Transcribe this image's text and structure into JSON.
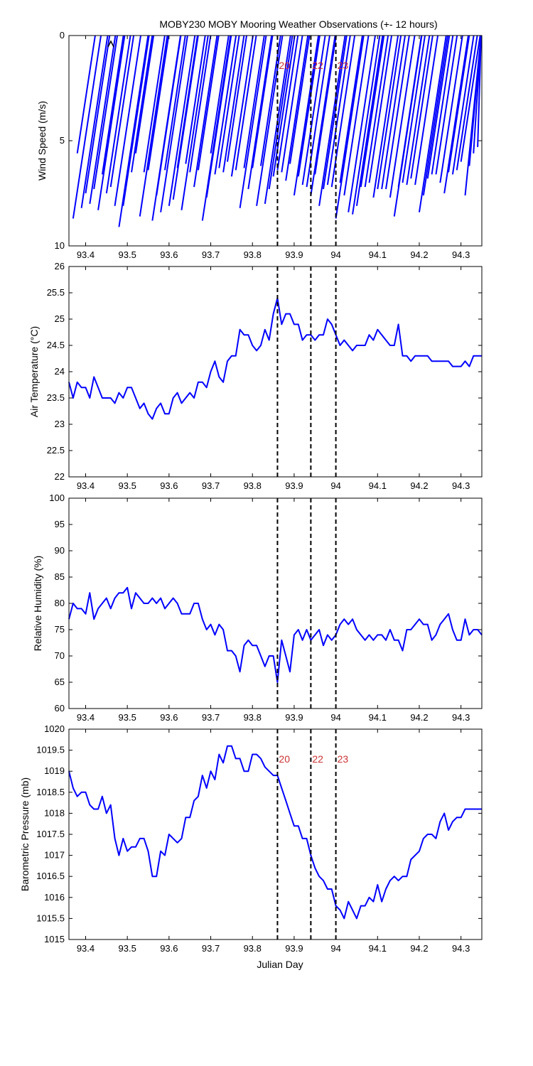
{
  "chart_data": [
    {
      "type": "quiver",
      "title": "MOBY230 MOBY Mooring Weather Observations (+- 12 hours)",
      "ylabel": "Wind Speed (m/s)",
      "xlabel": "",
      "xlim": [
        93.36,
        94.35
      ],
      "ylim": [
        10,
        0
      ],
      "y_reversed": true,
      "yticks": [
        0,
        5,
        10
      ],
      "xticks": [
        "93.4",
        "93.5",
        "93.6",
        "93.7",
        "93.8",
        "93.9",
        "94",
        "94.1",
        "94.2",
        "94.3"
      ],
      "series": [
        {
          "color": "#0000ff",
          "x": [
            93.37,
            93.38,
            93.39,
            93.4,
            93.41,
            93.42,
            93.43,
            93.44,
            93.45,
            93.46,
            93.47,
            93.48,
            93.49,
            93.5,
            93.51,
            93.52,
            93.53,
            93.54,
            93.55,
            93.56,
            93.57,
            93.58,
            93.59,
            93.6,
            93.61,
            93.62,
            93.63,
            93.64,
            93.65,
            93.66,
            93.67,
            93.68,
            93.69,
            93.7,
            93.71,
            93.72,
            93.73,
            93.74,
            93.75,
            93.76,
            93.77,
            93.78,
            93.79,
            93.8,
            93.81,
            93.82,
            93.83,
            93.84,
            93.85,
            93.86,
            93.87,
            93.88,
            93.89,
            93.9,
            93.91,
            93.92,
            93.93,
            93.94,
            93.95,
            93.96,
            93.97,
            93.98,
            93.99,
            94.0,
            94.01,
            94.02,
            94.03,
            94.04,
            94.05,
            94.06,
            94.07,
            94.08,
            94.09,
            94.1,
            94.11,
            94.12,
            94.13,
            94.14,
            94.15,
            94.16,
            94.17,
            94.18,
            94.19,
            94.2,
            94.21,
            94.22,
            94.23,
            94.24,
            94.25,
            94.26,
            94.27,
            94.28,
            94.29,
            94.3,
            94.31,
            94.32,
            94.33,
            94.34
          ],
          "speed": [
            8.7,
            5.6,
            8.2,
            7.5,
            8.0,
            7.3,
            8.3,
            6.6,
            7.5,
            7.2,
            8.1,
            9.1,
            8.1,
            6.7,
            6.5,
            5.6,
            8.6,
            6.5,
            6.4,
            8.8,
            7.6,
            8.4,
            6.4,
            8.1,
            7.8,
            6.3,
            8.3,
            6.1,
            6.5,
            7.2,
            6.4,
            8.8,
            7.7,
            5.6,
            6.6,
            6.3,
            6.5,
            6.0,
            6.7,
            6.4,
            8.2,
            6.3,
            7.3,
            6.3,
            8.1,
            6.2,
            8.0,
            7.3,
            6.7,
            6.4,
            6.5,
            6.9,
            6.1,
            7.6,
            6.7,
            7.1,
            7.2,
            7.6,
            6.6,
            8.1,
            7.3,
            7.1,
            7.2,
            8.7,
            7.0,
            7.6,
            8.4,
            8.5,
            8.1,
            7.2,
            7.2,
            7.0,
            7.7,
            7.3,
            7.3,
            7.3,
            7.7,
            8.6,
            7.2,
            7.0,
            7.1,
            6.8,
            7.1,
            8.4,
            7.6,
            6.8,
            6.6,
            6.6,
            7.0,
            7.5,
            6.5,
            6.6,
            6.4,
            6.0,
            7.6,
            6.2,
            5.6,
            5.3
          ]
        }
      ]
    },
    {
      "type": "line",
      "title": "",
      "xlabel": "",
      "ylabel": "Air Temperature (°C)",
      "xlim": [
        93.36,
        94.35
      ],
      "ylim": [
        22,
        26
      ],
      "yticks": [
        "22",
        "22.5",
        "23",
        "23.5",
        "24",
        "24.5",
        "25",
        "25.5",
        "26"
      ],
      "xticks": [
        "93.4",
        "93.5",
        "93.6",
        "93.7",
        "93.8",
        "93.9",
        "94",
        "94.1",
        "94.2",
        "94.3"
      ],
      "series": [
        {
          "color": "#0000ff",
          "x": [
            93.36,
            93.37,
            93.38,
            93.39,
            93.4,
            93.41,
            93.42,
            93.43,
            93.44,
            93.45,
            93.46,
            93.47,
            93.48,
            93.49,
            93.5,
            93.51,
            93.52,
            93.53,
            93.54,
            93.55,
            93.56,
            93.57,
            93.58,
            93.59,
            93.6,
            93.61,
            93.62,
            93.63,
            93.64,
            93.65,
            93.66,
            93.67,
            93.68,
            93.69,
            93.7,
            93.71,
            93.72,
            93.73,
            93.74,
            93.75,
            93.76,
            93.77,
            93.78,
            93.79,
            93.8,
            93.81,
            93.82,
            93.83,
            93.84,
            93.85,
            93.86,
            93.87,
            93.88,
            93.89,
            93.9,
            93.91,
            93.92,
            93.93,
            93.94,
            93.95,
            93.96,
            93.97,
            93.98,
            93.99,
            94.0,
            94.01,
            94.02,
            94.03,
            94.04,
            94.05,
            94.06,
            94.07,
            94.08,
            94.09,
            94.1,
            94.11,
            94.12,
            94.13,
            94.14,
            94.15,
            94.16,
            94.17,
            94.18,
            94.19,
            94.2,
            94.21,
            94.22,
            94.23,
            94.24,
            94.25,
            94.26,
            94.27,
            94.28,
            94.29,
            94.3,
            94.31,
            94.32,
            94.33,
            94.34,
            94.35
          ],
          "values": [
            23.8,
            23.5,
            23.8,
            23.7,
            23.7,
            23.5,
            23.9,
            23.7,
            23.5,
            23.5,
            23.5,
            23.4,
            23.6,
            23.5,
            23.7,
            23.7,
            23.5,
            23.3,
            23.4,
            23.2,
            23.1,
            23.3,
            23.4,
            23.2,
            23.2,
            23.5,
            23.6,
            23.4,
            23.5,
            23.6,
            23.5,
            23.8,
            23.8,
            23.7,
            24.0,
            24.2,
            23.9,
            23.8,
            24.2,
            24.3,
            24.3,
            24.8,
            24.7,
            24.7,
            24.5,
            24.4,
            24.5,
            24.8,
            24.6,
            25.1,
            25.4,
            24.9,
            25.1,
            25.1,
            24.9,
            24.9,
            24.6,
            24.7,
            24.7,
            24.6,
            24.7,
            24.7,
            25.0,
            24.9,
            24.7,
            24.5,
            24.6,
            24.5,
            24.4,
            24.5,
            24.5,
            24.5,
            24.7,
            24.6,
            24.8,
            24.7,
            24.6,
            24.5,
            24.5,
            24.9,
            24.3,
            24.3,
            24.2,
            24.3,
            24.3,
            24.3,
            24.3,
            24.2,
            24.2,
            24.2,
            24.2,
            24.2,
            24.1,
            24.1,
            24.1,
            24.2,
            24.1,
            24.3,
            24.3,
            24.3
          ]
        }
      ]
    },
    {
      "type": "line",
      "title": "",
      "xlabel": "",
      "ylabel": "Relative Humidity (%)",
      "xlim": [
        93.36,
        94.35
      ],
      "ylim": [
        60,
        100
      ],
      "yticks": [
        "60",
        "65",
        "70",
        "75",
        "80",
        "85",
        "90",
        "95",
        "100"
      ],
      "xticks": [
        "93.4",
        "93.5",
        "93.6",
        "93.7",
        "93.8",
        "93.9",
        "94",
        "94.1",
        "94.2",
        "94.3"
      ],
      "series": [
        {
          "color": "#0000ff",
          "x": [
            93.36,
            93.37,
            93.38,
            93.39,
            93.4,
            93.41,
            93.42,
            93.43,
            93.44,
            93.45,
            93.46,
            93.47,
            93.48,
            93.49,
            93.5,
            93.51,
            93.52,
            93.53,
            93.54,
            93.55,
            93.56,
            93.57,
            93.58,
            93.59,
            93.6,
            93.61,
            93.62,
            93.63,
            93.64,
            93.65,
            93.66,
            93.67,
            93.68,
            93.69,
            93.7,
            93.71,
            93.72,
            93.73,
            93.74,
            93.75,
            93.76,
            93.77,
            93.78,
            93.79,
            93.8,
            93.81,
            93.82,
            93.83,
            93.84,
            93.85,
            93.86,
            93.87,
            93.88,
            93.89,
            93.9,
            93.91,
            93.92,
            93.93,
            93.94,
            93.95,
            93.96,
            93.97,
            93.98,
            93.99,
            94.0,
            94.01,
            94.02,
            94.03,
            94.04,
            94.05,
            94.06,
            94.07,
            94.08,
            94.09,
            94.1,
            94.11,
            94.12,
            94.13,
            94.14,
            94.15,
            94.16,
            94.17,
            94.18,
            94.19,
            94.2,
            94.21,
            94.22,
            94.23,
            94.24,
            94.25,
            94.26,
            94.27,
            94.28,
            94.29,
            94.3,
            94.31,
            94.32,
            94.33,
            94.34,
            94.35
          ],
          "values": [
            77,
            80,
            79,
            79,
            78,
            82,
            77,
            79,
            80,
            81,
            79,
            81,
            82,
            82,
            83,
            79,
            82,
            81,
            80,
            80,
            81,
            80,
            81,
            79,
            80,
            81,
            80,
            78,
            78,
            78,
            80,
            80,
            77,
            75,
            76,
            74,
            76,
            75,
            71,
            71,
            70,
            67,
            72,
            73,
            72,
            72,
            70,
            68,
            70,
            70,
            65,
            73,
            70,
            67,
            74,
            75,
            73,
            75,
            73,
            74,
            75,
            72,
            74,
            73,
            74,
            76,
            77,
            76,
            77,
            75,
            74,
            73,
            74,
            73,
            74,
            74,
            73,
            75,
            73,
            73,
            71,
            75,
            75,
            76,
            77,
            76,
            76,
            73,
            74,
            76,
            77,
            78,
            75,
            73,
            73,
            77,
            74,
            75,
            75,
            74
          ]
        }
      ]
    },
    {
      "type": "line",
      "title": "",
      "xlabel": "Julian Day",
      "ylabel": "Barometric Pressure (mb)",
      "xlim": [
        93.36,
        94.35
      ],
      "ylim": [
        1015,
        1020
      ],
      "yticks": [
        "1015",
        "1015.5",
        "1016",
        "1016.5",
        "1017",
        "1017.5",
        "1018",
        "1018.5",
        "1019",
        "1019.5",
        "1020"
      ],
      "xticks": [
        "93.4",
        "93.5",
        "93.6",
        "93.7",
        "93.8",
        "93.9",
        "94",
        "94.1",
        "94.2",
        "94.3"
      ],
      "series": [
        {
          "color": "#0000ff",
          "x": [
            93.36,
            93.37,
            93.38,
            93.39,
            93.4,
            93.41,
            93.42,
            93.43,
            93.44,
            93.45,
            93.46,
            93.47,
            93.48,
            93.49,
            93.5,
            93.51,
            93.52,
            93.53,
            93.54,
            93.55,
            93.56,
            93.57,
            93.58,
            93.59,
            93.6,
            93.61,
            93.62,
            93.63,
            93.64,
            93.65,
            93.66,
            93.67,
            93.68,
            93.69,
            93.7,
            93.71,
            93.72,
            93.73,
            93.74,
            93.75,
            93.76,
            93.77,
            93.78,
            93.79,
            93.8,
            93.81,
            93.82,
            93.83,
            93.84,
            93.85,
            93.86,
            93.87,
            93.88,
            93.89,
            93.9,
            93.91,
            93.92,
            93.93,
            93.94,
            93.95,
            93.96,
            93.97,
            93.98,
            93.99,
            94.0,
            94.01,
            94.02,
            94.03,
            94.04,
            94.05,
            94.06,
            94.07,
            94.08,
            94.09,
            94.1,
            94.11,
            94.12,
            94.13,
            94.14,
            94.15,
            94.16,
            94.17,
            94.18,
            94.19,
            94.2,
            94.21,
            94.22,
            94.23,
            94.24,
            94.25,
            94.26,
            94.27,
            94.28,
            94.29,
            94.3,
            94.31,
            94.32,
            94.33,
            94.34,
            94.35
          ],
          "values": [
            1019.0,
            1018.6,
            1018.4,
            1018.5,
            1018.5,
            1018.2,
            1018.1,
            1018.1,
            1018.4,
            1018.0,
            1018.2,
            1017.4,
            1017.0,
            1017.4,
            1017.1,
            1017.2,
            1017.2,
            1017.4,
            1017.4,
            1017.1,
            1016.5,
            1016.5,
            1017.1,
            1017.0,
            1017.5,
            1017.4,
            1017.3,
            1017.4,
            1017.9,
            1017.9,
            1018.3,
            1018.4,
            1018.9,
            1018.6,
            1019.0,
            1018.8,
            1019.4,
            1019.2,
            1019.6,
            1019.6,
            1019.3,
            1019.3,
            1019.0,
            1019.0,
            1019.4,
            1019.4,
            1019.3,
            1019.1,
            1019.0,
            1018.9,
            1018.9,
            1018.6,
            1018.3,
            1018.0,
            1017.7,
            1017.7,
            1017.4,
            1017.4,
            1017.0,
            1016.7,
            1016.5,
            1016.4,
            1016.2,
            1016.2,
            1015.8,
            1015.7,
            1015.5,
            1015.9,
            1015.7,
            1015.5,
            1015.8,
            1015.8,
            1016.0,
            1015.9,
            1016.3,
            1015.9,
            1016.2,
            1016.4,
            1016.5,
            1016.4,
            1016.5,
            1016.5,
            1016.9,
            1017.0,
            1017.1,
            1017.4,
            1017.5,
            1017.5,
            1017.4,
            1017.8,
            1018.0,
            1017.6,
            1017.8,
            1017.9,
            1017.9,
            1018.1,
            1018.1,
            1018.1,
            1018.1,
            1018.1
          ]
        }
      ]
    }
  ],
  "markers": {
    "x": [
      93.86,
      93.94,
      94.0
    ],
    "labels": [
      "20",
      "22",
      "23"
    ],
    "label_color": "#cc3333",
    "line_color": "#000000"
  }
}
